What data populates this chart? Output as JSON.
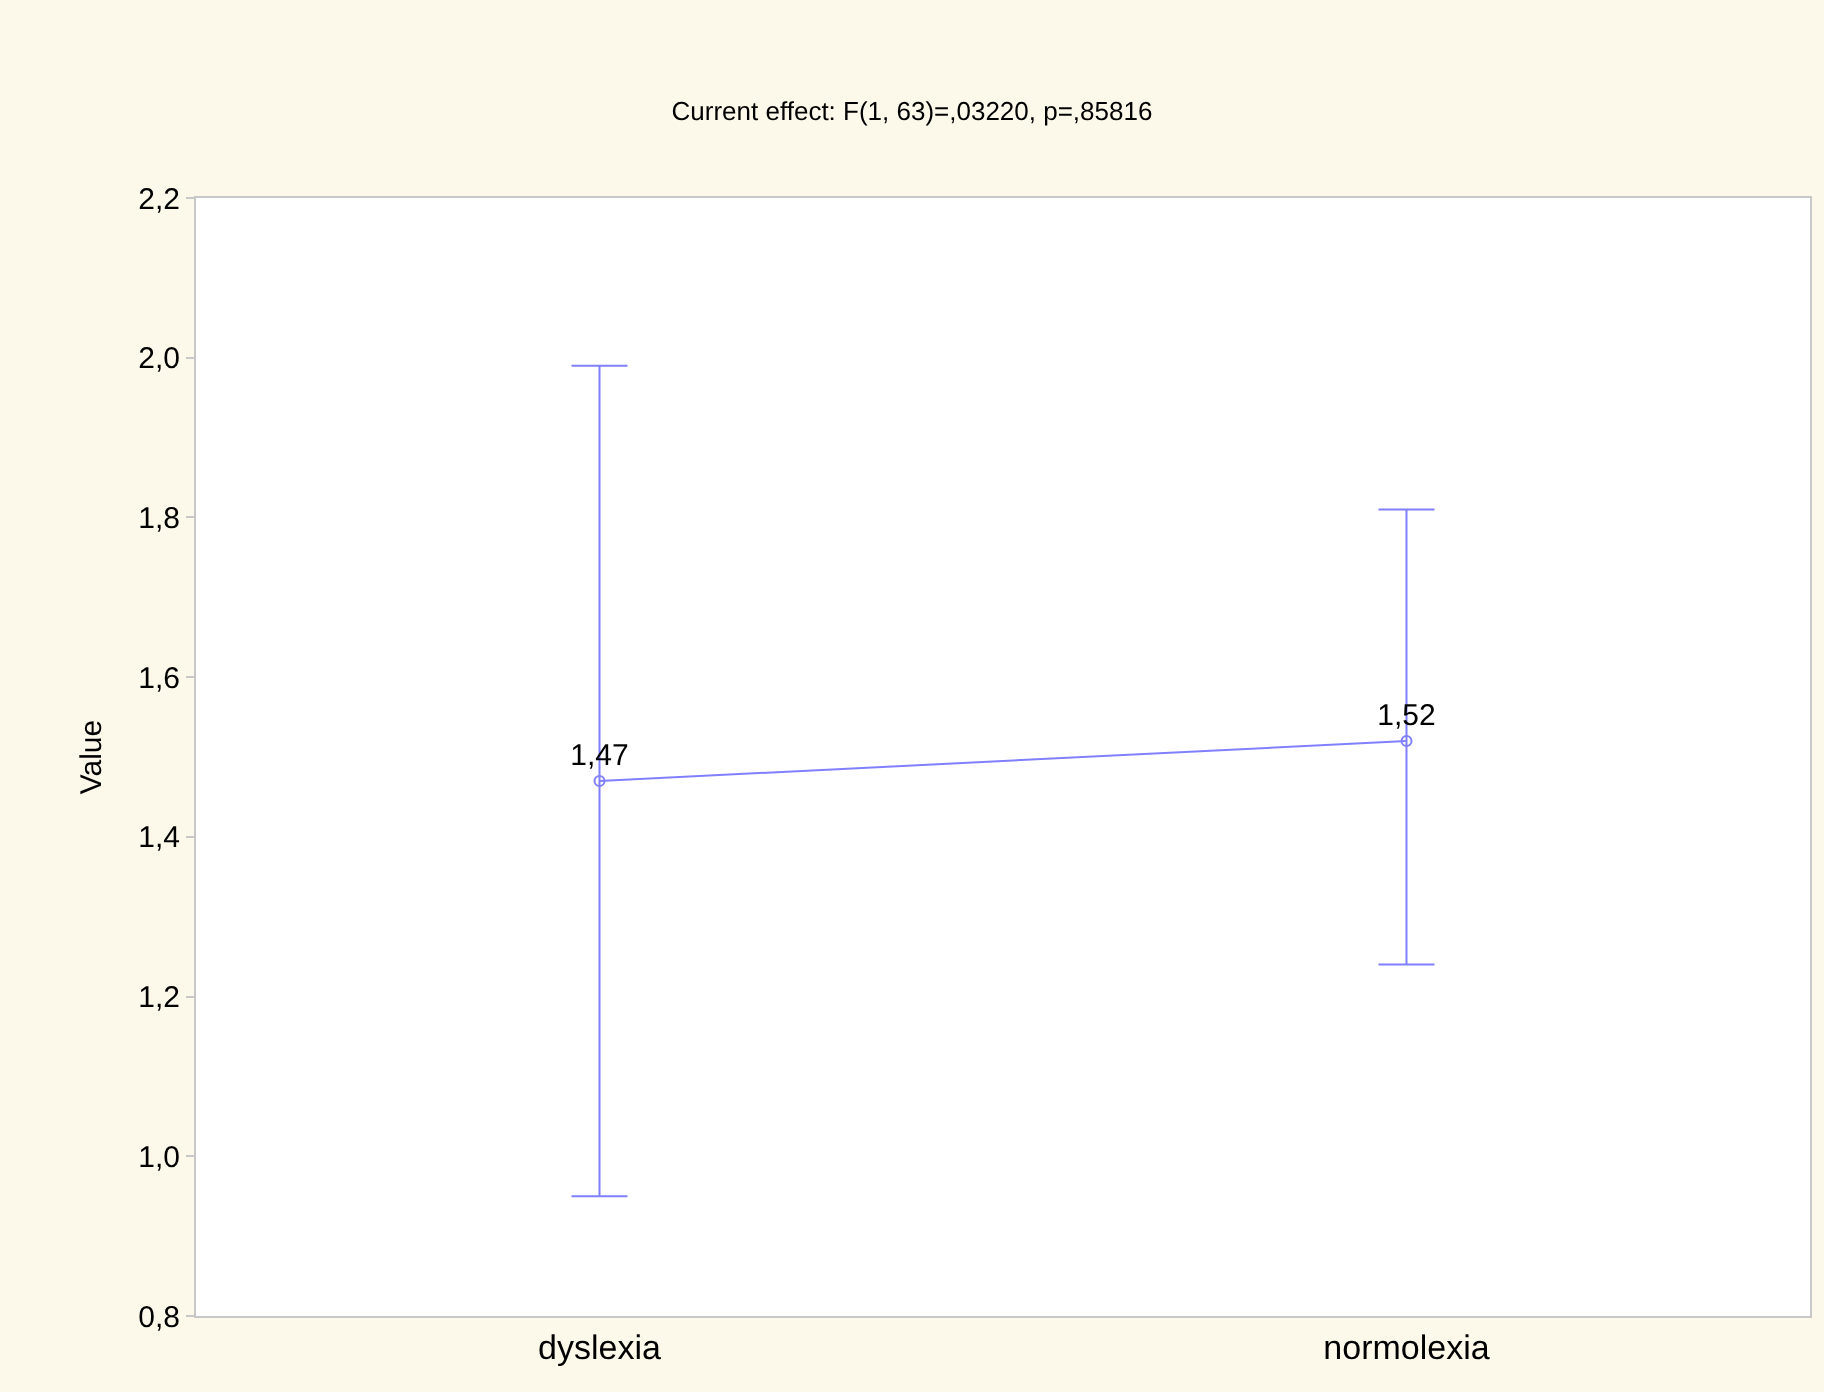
{
  "chart_data": {
    "type": "line",
    "title": "Current effect: F(1, 63)=,03220, p=,85816",
    "ylabel": "Value",
    "categories": [
      "dyslexia",
      "normolexia"
    ],
    "series": [
      {
        "color": "#8080ff",
        "values": [
          1.47,
          1.52
        ],
        "value_labels": [
          "1,47",
          "1,52"
        ],
        "errors": [
          [
            0.95,
            1.99
          ],
          [
            1.24,
            1.81
          ]
        ]
      }
    ],
    "ylim": [
      0.8,
      2.2
    ],
    "yticks": [
      {
        "value": 0.8,
        "label": "0,8"
      },
      {
        "value": 1.0,
        "label": "1,0"
      },
      {
        "value": 1.2,
        "label": "1,2"
      },
      {
        "value": 1.4,
        "label": "1,4"
      },
      {
        "value": 1.6,
        "label": "1,6"
      },
      {
        "value": 1.8,
        "label": "1,8"
      },
      {
        "value": 2.0,
        "label": "2,0"
      },
      {
        "value": 2.2,
        "label": "2,2"
      }
    ],
    "marker": "circle",
    "line_style": "solid",
    "grid": false
  }
}
